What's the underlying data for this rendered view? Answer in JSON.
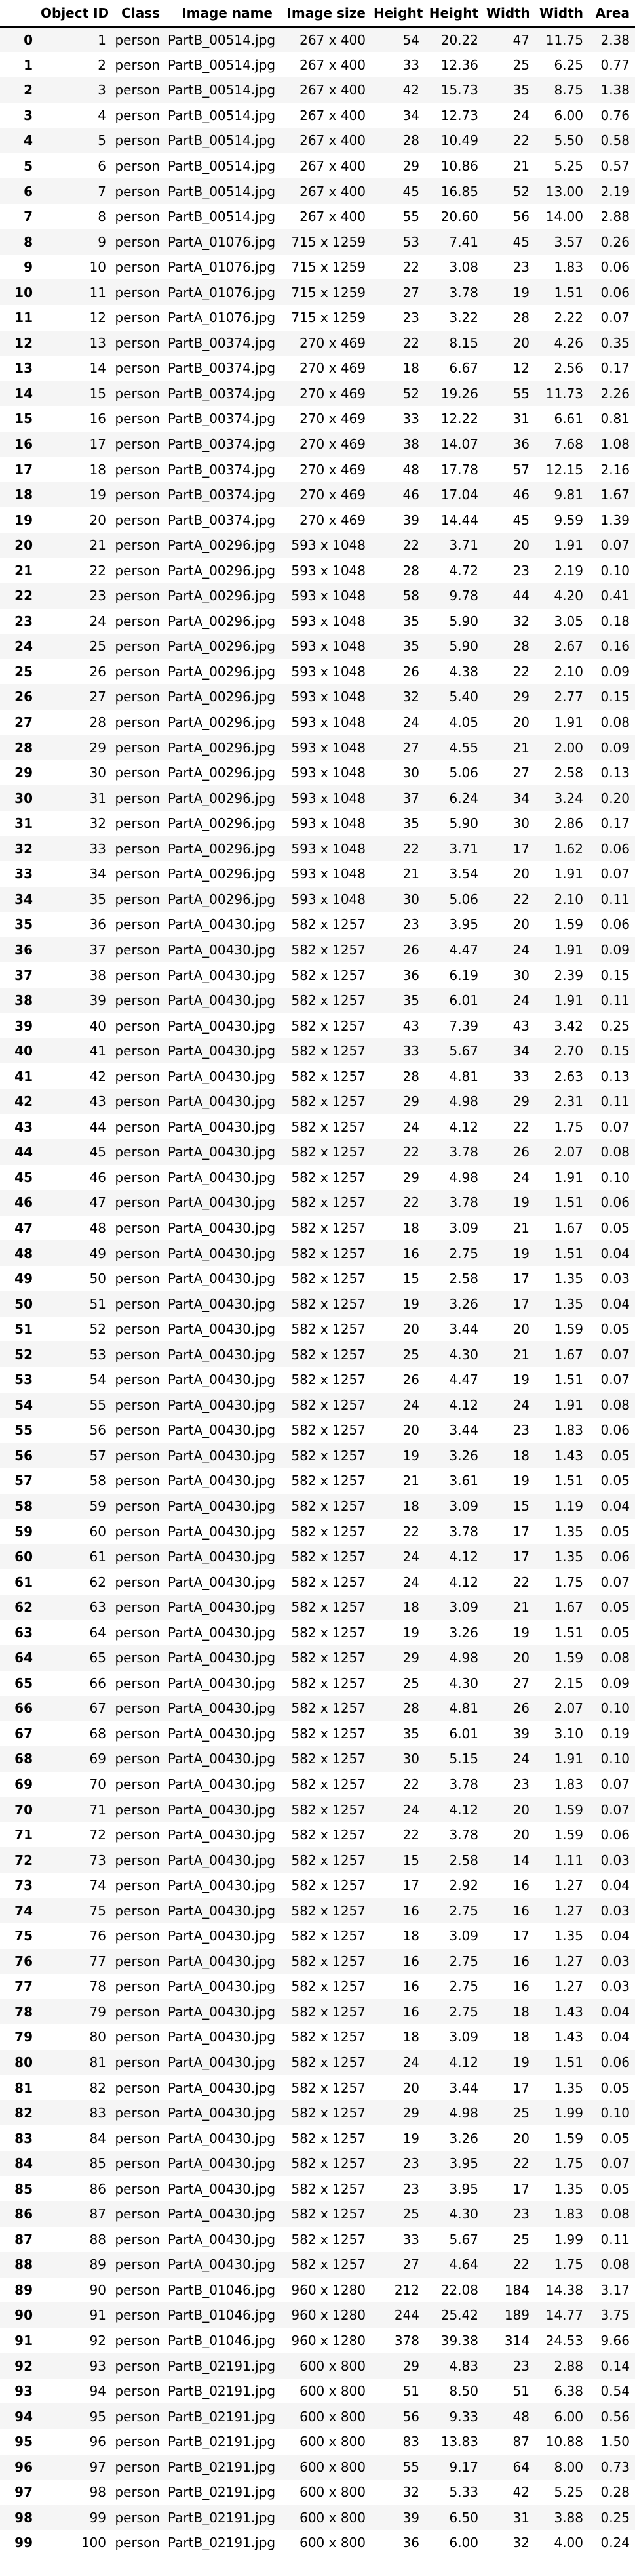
{
  "table": {
    "columns": [
      "",
      "Object ID",
      "Class",
      "Image name",
      "Image size",
      "Height",
      "Height",
      "Width",
      "Width",
      "Area"
    ],
    "rows": [
      [
        "0",
        "1",
        "person",
        "PartB_00514.jpg",
        "267 x 400",
        "54",
        "20.22",
        "47",
        "11.75",
        "2.38"
      ],
      [
        "1",
        "2",
        "person",
        "PartB_00514.jpg",
        "267 x 400",
        "33",
        "12.36",
        "25",
        "6.25",
        "0.77"
      ],
      [
        "2",
        "3",
        "person",
        "PartB_00514.jpg",
        "267 x 400",
        "42",
        "15.73",
        "35",
        "8.75",
        "1.38"
      ],
      [
        "3",
        "4",
        "person",
        "PartB_00514.jpg",
        "267 x 400",
        "34",
        "12.73",
        "24",
        "6.00",
        "0.76"
      ],
      [
        "4",
        "5",
        "person",
        "PartB_00514.jpg",
        "267 x 400",
        "28",
        "10.49",
        "22",
        "5.50",
        "0.58"
      ],
      [
        "5",
        "6",
        "person",
        "PartB_00514.jpg",
        "267 x 400",
        "29",
        "10.86",
        "21",
        "5.25",
        "0.57"
      ],
      [
        "6",
        "7",
        "person",
        "PartB_00514.jpg",
        "267 x 400",
        "45",
        "16.85",
        "52",
        "13.00",
        "2.19"
      ],
      [
        "7",
        "8",
        "person",
        "PartB_00514.jpg",
        "267 x 400",
        "55",
        "20.60",
        "56",
        "14.00",
        "2.88"
      ],
      [
        "8",
        "9",
        "person",
        "PartA_01076.jpg",
        "715 x 1259",
        "53",
        "7.41",
        "45",
        "3.57",
        "0.26"
      ],
      [
        "9",
        "10",
        "person",
        "PartA_01076.jpg",
        "715 x 1259",
        "22",
        "3.08",
        "23",
        "1.83",
        "0.06"
      ],
      [
        "10",
        "11",
        "person",
        "PartA_01076.jpg",
        "715 x 1259",
        "27",
        "3.78",
        "19",
        "1.51",
        "0.06"
      ],
      [
        "11",
        "12",
        "person",
        "PartA_01076.jpg",
        "715 x 1259",
        "23",
        "3.22",
        "28",
        "2.22",
        "0.07"
      ],
      [
        "12",
        "13",
        "person",
        "PartB_00374.jpg",
        "270 x 469",
        "22",
        "8.15",
        "20",
        "4.26",
        "0.35"
      ],
      [
        "13",
        "14",
        "person",
        "PartB_00374.jpg",
        "270 x 469",
        "18",
        "6.67",
        "12",
        "2.56",
        "0.17"
      ],
      [
        "14",
        "15",
        "person",
        "PartB_00374.jpg",
        "270 x 469",
        "52",
        "19.26",
        "55",
        "11.73",
        "2.26"
      ],
      [
        "15",
        "16",
        "person",
        "PartB_00374.jpg",
        "270 x 469",
        "33",
        "12.22",
        "31",
        "6.61",
        "0.81"
      ],
      [
        "16",
        "17",
        "person",
        "PartB_00374.jpg",
        "270 x 469",
        "38",
        "14.07",
        "36",
        "7.68",
        "1.08"
      ],
      [
        "17",
        "18",
        "person",
        "PartB_00374.jpg",
        "270 x 469",
        "48",
        "17.78",
        "57",
        "12.15",
        "2.16"
      ],
      [
        "18",
        "19",
        "person",
        "PartB_00374.jpg",
        "270 x 469",
        "46",
        "17.04",
        "46",
        "9.81",
        "1.67"
      ],
      [
        "19",
        "20",
        "person",
        "PartB_00374.jpg",
        "270 x 469",
        "39",
        "14.44",
        "45",
        "9.59",
        "1.39"
      ],
      [
        "20",
        "21",
        "person",
        "PartA_00296.jpg",
        "593 x 1048",
        "22",
        "3.71",
        "20",
        "1.91",
        "0.07"
      ],
      [
        "21",
        "22",
        "person",
        "PartA_00296.jpg",
        "593 x 1048",
        "28",
        "4.72",
        "23",
        "2.19",
        "0.10"
      ],
      [
        "22",
        "23",
        "person",
        "PartA_00296.jpg",
        "593 x 1048",
        "58",
        "9.78",
        "44",
        "4.20",
        "0.41"
      ],
      [
        "23",
        "24",
        "person",
        "PartA_00296.jpg",
        "593 x 1048",
        "35",
        "5.90",
        "32",
        "3.05",
        "0.18"
      ],
      [
        "24",
        "25",
        "person",
        "PartA_00296.jpg",
        "593 x 1048",
        "35",
        "5.90",
        "28",
        "2.67",
        "0.16"
      ],
      [
        "25",
        "26",
        "person",
        "PartA_00296.jpg",
        "593 x 1048",
        "26",
        "4.38",
        "22",
        "2.10",
        "0.09"
      ],
      [
        "26",
        "27",
        "person",
        "PartA_00296.jpg",
        "593 x 1048",
        "32",
        "5.40",
        "29",
        "2.77",
        "0.15"
      ],
      [
        "27",
        "28",
        "person",
        "PartA_00296.jpg",
        "593 x 1048",
        "24",
        "4.05",
        "20",
        "1.91",
        "0.08"
      ],
      [
        "28",
        "29",
        "person",
        "PartA_00296.jpg",
        "593 x 1048",
        "27",
        "4.55",
        "21",
        "2.00",
        "0.09"
      ],
      [
        "29",
        "30",
        "person",
        "PartA_00296.jpg",
        "593 x 1048",
        "30",
        "5.06",
        "27",
        "2.58",
        "0.13"
      ],
      [
        "30",
        "31",
        "person",
        "PartA_00296.jpg",
        "593 x 1048",
        "37",
        "6.24",
        "34",
        "3.24",
        "0.20"
      ],
      [
        "31",
        "32",
        "person",
        "PartA_00296.jpg",
        "593 x 1048",
        "35",
        "5.90",
        "30",
        "2.86",
        "0.17"
      ],
      [
        "32",
        "33",
        "person",
        "PartA_00296.jpg",
        "593 x 1048",
        "22",
        "3.71",
        "17",
        "1.62",
        "0.06"
      ],
      [
        "33",
        "34",
        "person",
        "PartA_00296.jpg",
        "593 x 1048",
        "21",
        "3.54",
        "20",
        "1.91",
        "0.07"
      ],
      [
        "34",
        "35",
        "person",
        "PartA_00296.jpg",
        "593 x 1048",
        "30",
        "5.06",
        "22",
        "2.10",
        "0.11"
      ],
      [
        "35",
        "36",
        "person",
        "PartA_00430.jpg",
        "582 x 1257",
        "23",
        "3.95",
        "20",
        "1.59",
        "0.06"
      ],
      [
        "36",
        "37",
        "person",
        "PartA_00430.jpg",
        "582 x 1257",
        "26",
        "4.47",
        "24",
        "1.91",
        "0.09"
      ],
      [
        "37",
        "38",
        "person",
        "PartA_00430.jpg",
        "582 x 1257",
        "36",
        "6.19",
        "30",
        "2.39",
        "0.15"
      ],
      [
        "38",
        "39",
        "person",
        "PartA_00430.jpg",
        "582 x 1257",
        "35",
        "6.01",
        "24",
        "1.91",
        "0.11"
      ],
      [
        "39",
        "40",
        "person",
        "PartA_00430.jpg",
        "582 x 1257",
        "43",
        "7.39",
        "43",
        "3.42",
        "0.25"
      ],
      [
        "40",
        "41",
        "person",
        "PartA_00430.jpg",
        "582 x 1257",
        "33",
        "5.67",
        "34",
        "2.70",
        "0.15"
      ],
      [
        "41",
        "42",
        "person",
        "PartA_00430.jpg",
        "582 x 1257",
        "28",
        "4.81",
        "33",
        "2.63",
        "0.13"
      ],
      [
        "42",
        "43",
        "person",
        "PartA_00430.jpg",
        "582 x 1257",
        "29",
        "4.98",
        "29",
        "2.31",
        "0.11"
      ],
      [
        "43",
        "44",
        "person",
        "PartA_00430.jpg",
        "582 x 1257",
        "24",
        "4.12",
        "22",
        "1.75",
        "0.07"
      ],
      [
        "44",
        "45",
        "person",
        "PartA_00430.jpg",
        "582 x 1257",
        "22",
        "3.78",
        "26",
        "2.07",
        "0.08"
      ],
      [
        "45",
        "46",
        "person",
        "PartA_00430.jpg",
        "582 x 1257",
        "29",
        "4.98",
        "24",
        "1.91",
        "0.10"
      ],
      [
        "46",
        "47",
        "person",
        "PartA_00430.jpg",
        "582 x 1257",
        "22",
        "3.78",
        "19",
        "1.51",
        "0.06"
      ],
      [
        "47",
        "48",
        "person",
        "PartA_00430.jpg",
        "582 x 1257",
        "18",
        "3.09",
        "21",
        "1.67",
        "0.05"
      ],
      [
        "48",
        "49",
        "person",
        "PartA_00430.jpg",
        "582 x 1257",
        "16",
        "2.75",
        "19",
        "1.51",
        "0.04"
      ],
      [
        "49",
        "50",
        "person",
        "PartA_00430.jpg",
        "582 x 1257",
        "15",
        "2.58",
        "17",
        "1.35",
        "0.03"
      ],
      [
        "50",
        "51",
        "person",
        "PartA_00430.jpg",
        "582 x 1257",
        "19",
        "3.26",
        "17",
        "1.35",
        "0.04"
      ],
      [
        "51",
        "52",
        "person",
        "PartA_00430.jpg",
        "582 x 1257",
        "20",
        "3.44",
        "20",
        "1.59",
        "0.05"
      ],
      [
        "52",
        "53",
        "person",
        "PartA_00430.jpg",
        "582 x 1257",
        "25",
        "4.30",
        "21",
        "1.67",
        "0.07"
      ],
      [
        "53",
        "54",
        "person",
        "PartA_00430.jpg",
        "582 x 1257",
        "26",
        "4.47",
        "19",
        "1.51",
        "0.07"
      ],
      [
        "54",
        "55",
        "person",
        "PartA_00430.jpg",
        "582 x 1257",
        "24",
        "4.12",
        "24",
        "1.91",
        "0.08"
      ],
      [
        "55",
        "56",
        "person",
        "PartA_00430.jpg",
        "582 x 1257",
        "20",
        "3.44",
        "23",
        "1.83",
        "0.06"
      ],
      [
        "56",
        "57",
        "person",
        "PartA_00430.jpg",
        "582 x 1257",
        "19",
        "3.26",
        "18",
        "1.43",
        "0.05"
      ],
      [
        "57",
        "58",
        "person",
        "PartA_00430.jpg",
        "582 x 1257",
        "21",
        "3.61",
        "19",
        "1.51",
        "0.05"
      ],
      [
        "58",
        "59",
        "person",
        "PartA_00430.jpg",
        "582 x 1257",
        "18",
        "3.09",
        "15",
        "1.19",
        "0.04"
      ],
      [
        "59",
        "60",
        "person",
        "PartA_00430.jpg",
        "582 x 1257",
        "22",
        "3.78",
        "17",
        "1.35",
        "0.05"
      ],
      [
        "60",
        "61",
        "person",
        "PartA_00430.jpg",
        "582 x 1257",
        "24",
        "4.12",
        "17",
        "1.35",
        "0.06"
      ],
      [
        "61",
        "62",
        "person",
        "PartA_00430.jpg",
        "582 x 1257",
        "24",
        "4.12",
        "22",
        "1.75",
        "0.07"
      ],
      [
        "62",
        "63",
        "person",
        "PartA_00430.jpg",
        "582 x 1257",
        "18",
        "3.09",
        "21",
        "1.67",
        "0.05"
      ],
      [
        "63",
        "64",
        "person",
        "PartA_00430.jpg",
        "582 x 1257",
        "19",
        "3.26",
        "19",
        "1.51",
        "0.05"
      ],
      [
        "64",
        "65",
        "person",
        "PartA_00430.jpg",
        "582 x 1257",
        "29",
        "4.98",
        "20",
        "1.59",
        "0.08"
      ],
      [
        "65",
        "66",
        "person",
        "PartA_00430.jpg",
        "582 x 1257",
        "25",
        "4.30",
        "27",
        "2.15",
        "0.09"
      ],
      [
        "66",
        "67",
        "person",
        "PartA_00430.jpg",
        "582 x 1257",
        "28",
        "4.81",
        "26",
        "2.07",
        "0.10"
      ],
      [
        "67",
        "68",
        "person",
        "PartA_00430.jpg",
        "582 x 1257",
        "35",
        "6.01",
        "39",
        "3.10",
        "0.19"
      ],
      [
        "68",
        "69",
        "person",
        "PartA_00430.jpg",
        "582 x 1257",
        "30",
        "5.15",
        "24",
        "1.91",
        "0.10"
      ],
      [
        "69",
        "70",
        "person",
        "PartA_00430.jpg",
        "582 x 1257",
        "22",
        "3.78",
        "23",
        "1.83",
        "0.07"
      ],
      [
        "70",
        "71",
        "person",
        "PartA_00430.jpg",
        "582 x 1257",
        "24",
        "4.12",
        "20",
        "1.59",
        "0.07"
      ],
      [
        "71",
        "72",
        "person",
        "PartA_00430.jpg",
        "582 x 1257",
        "22",
        "3.78",
        "20",
        "1.59",
        "0.06"
      ],
      [
        "72",
        "73",
        "person",
        "PartA_00430.jpg",
        "582 x 1257",
        "15",
        "2.58",
        "14",
        "1.11",
        "0.03"
      ],
      [
        "73",
        "74",
        "person",
        "PartA_00430.jpg",
        "582 x 1257",
        "17",
        "2.92",
        "16",
        "1.27",
        "0.04"
      ],
      [
        "74",
        "75",
        "person",
        "PartA_00430.jpg",
        "582 x 1257",
        "16",
        "2.75",
        "16",
        "1.27",
        "0.03"
      ],
      [
        "75",
        "76",
        "person",
        "PartA_00430.jpg",
        "582 x 1257",
        "18",
        "3.09",
        "17",
        "1.35",
        "0.04"
      ],
      [
        "76",
        "77",
        "person",
        "PartA_00430.jpg",
        "582 x 1257",
        "16",
        "2.75",
        "16",
        "1.27",
        "0.03"
      ],
      [
        "77",
        "78",
        "person",
        "PartA_00430.jpg",
        "582 x 1257",
        "16",
        "2.75",
        "16",
        "1.27",
        "0.03"
      ],
      [
        "78",
        "79",
        "person",
        "PartA_00430.jpg",
        "582 x 1257",
        "16",
        "2.75",
        "18",
        "1.43",
        "0.04"
      ],
      [
        "79",
        "80",
        "person",
        "PartA_00430.jpg",
        "582 x 1257",
        "18",
        "3.09",
        "18",
        "1.43",
        "0.04"
      ],
      [
        "80",
        "81",
        "person",
        "PartA_00430.jpg",
        "582 x 1257",
        "24",
        "4.12",
        "19",
        "1.51",
        "0.06"
      ],
      [
        "81",
        "82",
        "person",
        "PartA_00430.jpg",
        "582 x 1257",
        "20",
        "3.44",
        "17",
        "1.35",
        "0.05"
      ],
      [
        "82",
        "83",
        "person",
        "PartA_00430.jpg",
        "582 x 1257",
        "29",
        "4.98",
        "25",
        "1.99",
        "0.10"
      ],
      [
        "83",
        "84",
        "person",
        "PartA_00430.jpg",
        "582 x 1257",
        "19",
        "3.26",
        "20",
        "1.59",
        "0.05"
      ],
      [
        "84",
        "85",
        "person",
        "PartA_00430.jpg",
        "582 x 1257",
        "23",
        "3.95",
        "22",
        "1.75",
        "0.07"
      ],
      [
        "85",
        "86",
        "person",
        "PartA_00430.jpg",
        "582 x 1257",
        "23",
        "3.95",
        "17",
        "1.35",
        "0.05"
      ],
      [
        "86",
        "87",
        "person",
        "PartA_00430.jpg",
        "582 x 1257",
        "25",
        "4.30",
        "23",
        "1.83",
        "0.08"
      ],
      [
        "87",
        "88",
        "person",
        "PartA_00430.jpg",
        "582 x 1257",
        "33",
        "5.67",
        "25",
        "1.99",
        "0.11"
      ],
      [
        "88",
        "89",
        "person",
        "PartA_00430.jpg",
        "582 x 1257",
        "27",
        "4.64",
        "22",
        "1.75",
        "0.08"
      ],
      [
        "89",
        "90",
        "person",
        "PartB_01046.jpg",
        "960 x 1280",
        "212",
        "22.08",
        "184",
        "14.38",
        "3.17"
      ],
      [
        "90",
        "91",
        "person",
        "PartB_01046.jpg",
        "960 x 1280",
        "244",
        "25.42",
        "189",
        "14.77",
        "3.75"
      ],
      [
        "91",
        "92",
        "person",
        "PartB_01046.jpg",
        "960 x 1280",
        "378",
        "39.38",
        "314",
        "24.53",
        "9.66"
      ],
      [
        "92",
        "93",
        "person",
        "PartB_02191.jpg",
        "600 x 800",
        "29",
        "4.83",
        "23",
        "2.88",
        "0.14"
      ],
      [
        "93",
        "94",
        "person",
        "PartB_02191.jpg",
        "600 x 800",
        "51",
        "8.50",
        "51",
        "6.38",
        "0.54"
      ],
      [
        "94",
        "95",
        "person",
        "PartB_02191.jpg",
        "600 x 800",
        "56",
        "9.33",
        "48",
        "6.00",
        "0.56"
      ],
      [
        "95",
        "96",
        "person",
        "PartB_02191.jpg",
        "600 x 800",
        "83",
        "13.83",
        "87",
        "10.88",
        "1.50"
      ],
      [
        "96",
        "97",
        "person",
        "PartB_02191.jpg",
        "600 x 800",
        "55",
        "9.17",
        "64",
        "8.00",
        "0.73"
      ],
      [
        "97",
        "98",
        "person",
        "PartB_02191.jpg",
        "600 x 800",
        "32",
        "5.33",
        "42",
        "5.25",
        "0.28"
      ],
      [
        "98",
        "99",
        "person",
        "PartB_02191.jpg",
        "600 x 800",
        "39",
        "6.50",
        "31",
        "3.88",
        "0.25"
      ],
      [
        "99",
        "100",
        "person",
        "PartB_02191.jpg",
        "600 x 800",
        "36",
        "6.00",
        "32",
        "4.00",
        "0.24"
      ]
    ]
  }
}
